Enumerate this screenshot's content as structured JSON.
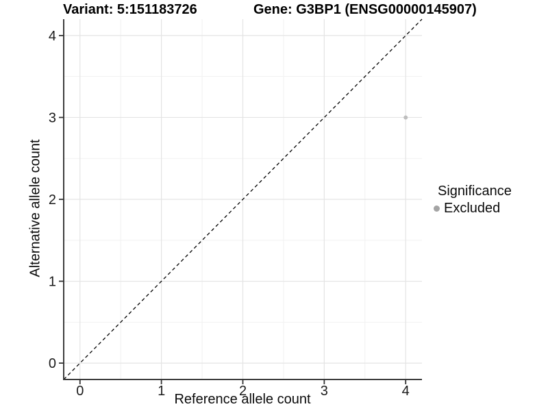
{
  "chart_data": {
    "type": "scatter",
    "titles": [
      "Variant: 5:151183726",
      "Gene: G3BP1 (ENSG00000145907)"
    ],
    "xlabel": "Reference allele count",
    "ylabel": "Alternative allele count",
    "xlim": [
      -0.2,
      4.2
    ],
    "ylim": [
      -0.2,
      4.2
    ],
    "x_ticks": [
      0,
      1,
      2,
      3,
      4
    ],
    "y_ticks": [
      0,
      1,
      2,
      3,
      4
    ],
    "grid": "major+minor",
    "reference_line": {
      "type": "identity",
      "style": "dashed",
      "from": [
        -0.2,
        -0.2
      ],
      "to": [
        4.2,
        4.2
      ],
      "color": "#000000"
    },
    "series": [
      {
        "name": "Excluded",
        "color": "#bebebe",
        "points": [
          [
            4,
            3
          ]
        ]
      }
    ],
    "legend": {
      "title": "Significance",
      "position": "right",
      "items": [
        {
          "label": "Excluded",
          "color": "#a4a4a4"
        }
      ]
    },
    "colors": {
      "grid_major": "#e4e4e4",
      "grid_minor": "#f1f1f1",
      "axis_line": "#3c3c3c",
      "tick_mark": "#333333",
      "tick_text": "#1a1a1a"
    }
  }
}
